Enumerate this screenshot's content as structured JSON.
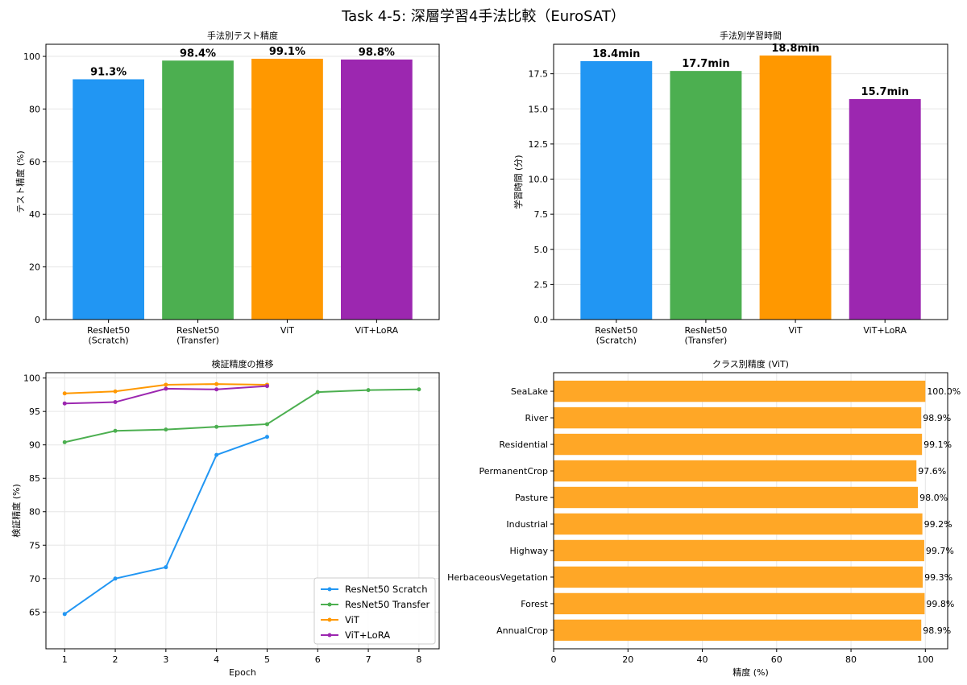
{
  "suptitle": "Task 4-5: 深層学習4手法比較（EuroSAT）",
  "chart_data": [
    {
      "type": "bar",
      "title": "手法別テスト精度",
      "xlabel": "",
      "ylabel": "テスト精度 (%)",
      "categories": [
        "ResNet50\n(Scratch)",
        "ResNet50\n(Transfer)",
        "ViT",
        "ViT+LoRA"
      ],
      "values": [
        91.3,
        98.4,
        99.1,
        98.8
      ],
      "data_labels": [
        "91.3%",
        "98.4%",
        "99.1%",
        "98.8%"
      ],
      "colors": [
        "#2196F3",
        "#4CAF50",
        "#FF9800",
        "#9C27B0"
      ],
      "ylim": [
        0,
        104.6
      ],
      "yticks": [
        0,
        20,
        40,
        60,
        80,
        100
      ],
      "grid": "y"
    },
    {
      "type": "bar",
      "title": "手法別学習時間",
      "xlabel": "",
      "ylabel": "学習時間 (分)",
      "categories": [
        "ResNet50\n(Scratch)",
        "ResNet50\n(Transfer)",
        "ViT",
        "ViT+LoRA"
      ],
      "values": [
        18.4,
        17.7,
        18.8,
        15.7
      ],
      "data_labels": [
        "18.4min",
        "17.7min",
        "18.8min",
        "15.7min"
      ],
      "colors": [
        "#2196F3",
        "#4CAF50",
        "#FF9800",
        "#9C27B0"
      ],
      "ylim": [
        0,
        19.6
      ],
      "yticks": [
        0.0,
        2.5,
        5.0,
        7.5,
        10.0,
        12.5,
        15.0,
        17.5
      ],
      "grid": "y"
    },
    {
      "type": "line",
      "title": "検証精度の推移",
      "xlabel": "Epoch",
      "ylabel": "検証精度 (%)",
      "xlim": [
        0.63,
        8.4
      ],
      "ylim": [
        59.5,
        100.8
      ],
      "xticks": [
        1,
        2,
        3,
        4,
        5,
        6,
        7,
        8
      ],
      "yticks": [
        65,
        70,
        75,
        80,
        85,
        90,
        95,
        100
      ],
      "grid": true,
      "legend": "lower-right",
      "series": [
        {
          "name": "ResNet50 Scratch",
          "color": "#2196F3",
          "x": [
            1,
            2,
            3,
            4,
            5
          ],
          "y": [
            64.7,
            70.0,
            71.7,
            88.5,
            91.2
          ]
        },
        {
          "name": "ResNet50 Transfer",
          "color": "#4CAF50",
          "x": [
            1,
            2,
            3,
            4,
            5,
            6,
            7,
            8
          ],
          "y": [
            90.4,
            92.1,
            92.3,
            92.7,
            93.1,
            97.9,
            98.2,
            98.3
          ]
        },
        {
          "name": "ViT",
          "color": "#FF9800",
          "x": [
            1,
            2,
            3,
            4,
            5
          ],
          "y": [
            97.7,
            98.0,
            99.0,
            99.1,
            99.0
          ]
        },
        {
          "name": "ViT+LoRA",
          "color": "#9C27B0",
          "x": [
            1,
            2,
            3,
            4,
            5
          ],
          "y": [
            96.2,
            96.4,
            98.4,
            98.3,
            98.8
          ]
        }
      ]
    },
    {
      "type": "barh",
      "title": "クラス別精度 (ViT)",
      "xlabel": "精度 (%)",
      "ylabel": "",
      "categories": [
        "AnnualCrop",
        "Forest",
        "HerbaceousVegetation",
        "Highway",
        "Industrial",
        "Pasture",
        "PermanentCrop",
        "Residential",
        "River",
        "SeaLake"
      ],
      "values": [
        98.9,
        99.8,
        99.3,
        99.7,
        99.2,
        98.0,
        97.6,
        99.1,
        98.9,
        100.0
      ],
      "data_labels": [
        "98.9%",
        "99.8%",
        "99.3%",
        "99.7%",
        "99.2%",
        "98.0%",
        "97.6%",
        "99.1%",
        "98.9%",
        "100.0%"
      ],
      "color": "#FFA726",
      "xlim": [
        0,
        106
      ],
      "xticks": [
        0,
        20,
        40,
        60,
        80,
        100
      ],
      "grid": "x"
    }
  ]
}
